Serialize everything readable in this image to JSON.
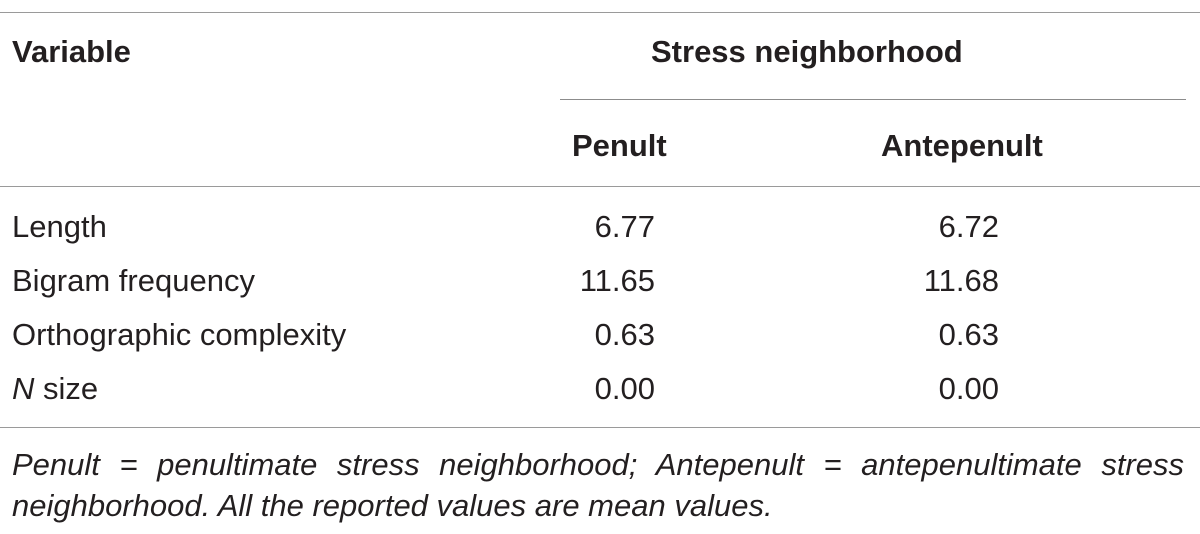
{
  "table": {
    "header": {
      "variable": "Variable",
      "group": "Stress neighborhood",
      "columns": [
        "Penult",
        "Antepenult"
      ]
    },
    "rows": [
      {
        "label": "Length",
        "label_italic_prefix": "",
        "values": [
          "6.77",
          "6.72"
        ]
      },
      {
        "label": "Bigram frequency",
        "label_italic_prefix": "",
        "values": [
          "11.65",
          "11.68"
        ]
      },
      {
        "label": "Orthographic complexity",
        "label_italic_prefix": "",
        "values": [
          "0.63",
          "0.63"
        ]
      },
      {
        "label": " size",
        "label_italic_prefix": "N",
        "values": [
          "0.00",
          "0.00"
        ]
      }
    ],
    "footnote": "Penult = penultimate stress neighborhood; Antepenult = antepenultimate stress neighborhood. All the reported values are mean values."
  }
}
